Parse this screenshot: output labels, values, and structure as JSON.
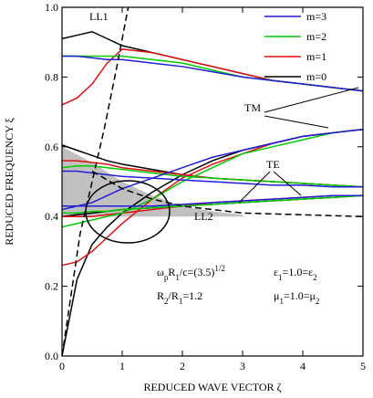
{
  "chart_data": {
    "type": "line",
    "xlabel": "REDUCED WAVE VECTOR ζ",
    "ylabel": "REDUCED FREQUENCY ξ",
    "xlim": [
      0,
      5
    ],
    "ylim": [
      0,
      1
    ],
    "xticks": [
      0,
      1,
      2,
      3,
      4,
      5
    ],
    "yticks": [
      {
        "value": 0,
        "label": "0.0"
      },
      {
        "value": 0.2,
        "label": "0.2"
      },
      {
        "value": 0.4,
        "label": "0.4"
      },
      {
        "value": 0.6,
        "label": "0.6"
      },
      {
        "value": 0.8,
        "label": "0.8"
      },
      {
        "value": 1,
        "label": "1.0"
      }
    ],
    "legend": "upper right",
    "x": [
      0,
      0.25,
      0.5,
      0.75,
      1,
      1.5,
      2,
      2.5,
      3,
      3.5,
      4,
      4.5,
      5
    ],
    "series": [
      {
        "name": "m=3",
        "color": "#1f1fd6",
        "curves": [
          [
            0.86,
            0.86,
            0.855,
            0.85,
            0.85,
            0.84,
            0.83,
            0.815,
            0.8,
            0.79,
            0.78,
            0.77,
            0.76
          ],
          [
            0.53,
            0.53,
            0.525,
            0.52,
            0.515,
            0.51,
            0.505,
            0.5,
            0.495,
            0.49,
            0.49,
            0.485,
            0.485
          ],
          [
            0.42,
            0.43,
            0.44,
            0.46,
            0.48,
            0.51,
            0.54,
            0.57,
            0.59,
            0.61,
            0.63,
            0.64,
            0.65
          ],
          [
            0.43,
            0.43,
            0.43,
            0.43,
            0.43,
            0.43,
            0.435,
            0.44,
            0.445,
            0.45,
            0.455,
            0.46,
            0.46
          ]
        ]
      },
      {
        "name": "m=2",
        "color": "#00cc00",
        "curves": [
          [
            0.86,
            0.86,
            0.86,
            0.86,
            0.86,
            0.85,
            0.84,
            0.82,
            0.8,
            0.79,
            0.78,
            0.77,
            0.76
          ],
          [
            0.54,
            0.545,
            0.545,
            0.54,
            0.535,
            0.525,
            0.515,
            0.51,
            0.505,
            0.5,
            0.495,
            0.49,
            0.485
          ],
          [
            0.37,
            0.38,
            0.39,
            0.4,
            0.41,
            0.45,
            0.5,
            0.54,
            0.58,
            0.6,
            0.62,
            0.64,
            0.65
          ],
          [
            0.41,
            0.41,
            0.415,
            0.415,
            0.42,
            0.425,
            0.43,
            0.435,
            0.44,
            0.445,
            0.45,
            0.455,
            0.46
          ]
        ]
      },
      {
        "name": "m=1",
        "color": "#e01010",
        "curves": [
          [
            0.72,
            0.74,
            0.78,
            0.84,
            0.88,
            0.87,
            0.85,
            0.83,
            0.81,
            0.79,
            0.78,
            0.77,
            0.76
          ],
          [
            0.56,
            0.56,
            0.555,
            0.55,
            0.54,
            0.53,
            0.52,
            0.51,
            0.505,
            0.5,
            0.495,
            0.49,
            0.485
          ],
          [
            0.26,
            0.27,
            0.3,
            0.34,
            0.38,
            0.45,
            0.51,
            0.55,
            0.58,
            0.61,
            0.63,
            0.64,
            0.65
          ],
          [
            0.4,
            0.4,
            0.4,
            0.405,
            0.41,
            0.42,
            0.43,
            0.44,
            0.445,
            0.45,
            0.455,
            0.46,
            0.46
          ]
        ]
      },
      {
        "name": "m=0",
        "color": "#000000",
        "curves": [
          [
            0.91,
            0.92,
            0.93,
            0.91,
            0.89,
            0.87,
            0.85,
            0.83,
            0.81,
            0.79,
            0.78,
            0.77,
            0.76
          ],
          [
            0.605,
            0.59,
            0.575,
            0.56,
            0.55,
            0.535,
            0.52,
            0.51,
            0.505,
            0.5,
            0.495,
            0.49,
            0.485
          ],
          [
            0,
            0.22,
            0.32,
            0.37,
            0.41,
            0.47,
            0.52,
            0.56,
            0.59,
            0.61,
            0.63,
            0.64,
            0.65
          ],
          [
            0.4,
            0.405,
            0.41,
            0.415,
            0.42,
            0.425,
            0.43,
            0.435,
            0.44,
            0.445,
            0.45,
            0.455,
            0.46
          ]
        ]
      }
    ],
    "light_lines": [
      {
        "name": "LL1",
        "x": [
          0,
          0.3,
          0.5,
          0.7,
          0.9,
          1.1
        ],
        "values": [
          0,
          0.35,
          0.5,
          0.65,
          0.82,
          1
        ]
      },
      {
        "name": "LL2",
        "x": [
          0.5,
          1,
          1.5,
          2,
          3,
          5
        ],
        "values": [
          0.53,
          0.48,
          0.45,
          0.43,
          0.41,
          0.4
        ]
      }
    ],
    "shaded_region": {
      "color": "#c0c0c0",
      "x": [
        0,
        0.5,
        1,
        1.5,
        2,
        2.5,
        3
      ],
      "upper": [
        0.6,
        0.555,
        0.5,
        0.46,
        0.43,
        0.415,
        0.405
      ],
      "lower": [
        0.4,
        0.4,
        0.4,
        0.4,
        0.4,
        0.4,
        0.4
      ]
    },
    "annotations": [
      {
        "text": "TM"
      },
      {
        "text": "TE"
      },
      {
        "parts": [
          {
            "text": "ω"
          },
          {
            "text": "p",
            "sub": true
          },
          {
            "text": "R"
          },
          {
            "text": "1",
            "sub": true
          },
          {
            "text": "/c=(3.5)"
          },
          {
            "text": "1/2",
            "sup": true
          }
        ]
      },
      {
        "parts": [
          {
            "text": "R"
          },
          {
            "text": "2",
            "sub": true
          },
          {
            "text": "/R"
          },
          {
            "text": "1",
            "sub": true
          },
          {
            "text": "=1.2"
          }
        ]
      },
      {
        "parts": [
          {
            "text": "ε"
          },
          {
            "text": "1",
            "sub": true
          },
          {
            "text": "=1.0=ε"
          },
          {
            "text": "2",
            "sub": true
          }
        ]
      },
      {
        "parts": [
          {
            "text": "μ"
          },
          {
            "text": "1",
            "sub": true
          },
          {
            "text": "=1.0=μ"
          },
          {
            "text": "2",
            "sub": true
          }
        ]
      }
    ]
  }
}
